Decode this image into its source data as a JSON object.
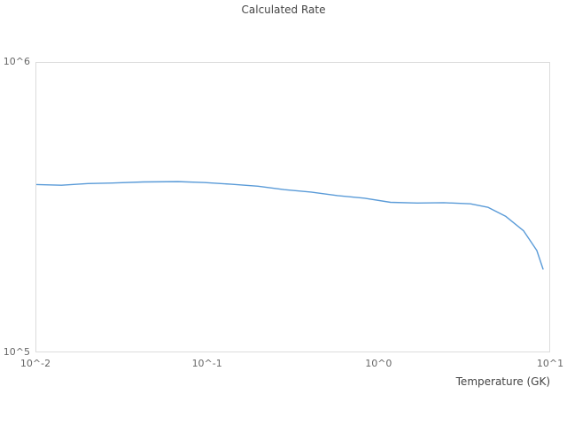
{
  "title": "Calculated Rate",
  "colors": {
    "background": "#ffffff",
    "line": "#5a9bd8",
    "frame": "#dcdcdc",
    "title_text": "#444444",
    "tick_text": "#666666",
    "axis_label_text": "#444444"
  },
  "chart_data": {
    "type": "line",
    "title": "Calculated Rate",
    "xlabel": "Temperature (GK)",
    "ylabel": "",
    "x_scale": "log",
    "y_scale": "log",
    "xlim": [
      0.01,
      10
    ],
    "ylim": [
      100000,
      1000000
    ],
    "grid": false,
    "legend_position": "none",
    "x_ticks": [
      {
        "value": 0.01,
        "label": "10^-2"
      },
      {
        "value": 0.1,
        "label": "10^-1"
      },
      {
        "value": 1,
        "label": "10^0"
      },
      {
        "value": 10,
        "label": "10^1"
      }
    ],
    "y_ticks": [
      {
        "value": 100000,
        "label": "10^5"
      },
      {
        "value": 1000000,
        "label": "10^6"
      }
    ],
    "series": [
      {
        "name": "calculated-rate",
        "color": "#5a9bd8",
        "x": [
          0.01,
          0.014,
          0.02,
          0.029,
          0.042,
          0.067,
          0.096,
          0.137,
          0.196,
          0.279,
          0.399,
          0.57,
          0.815,
          1.16,
          1.66,
          2.37,
          3.39,
          4.3,
          5.45,
          6.92,
          8.26,
          8.98
        ],
        "y": [
          381000,
          379000,
          384000,
          386000,
          389000,
          390000,
          387000,
          382000,
          376000,
          366000,
          359000,
          349000,
          342000,
          331000,
          329000,
          330000,
          327000,
          318000,
          296000,
          264000,
          226000,
          195000
        ]
      }
    ]
  }
}
